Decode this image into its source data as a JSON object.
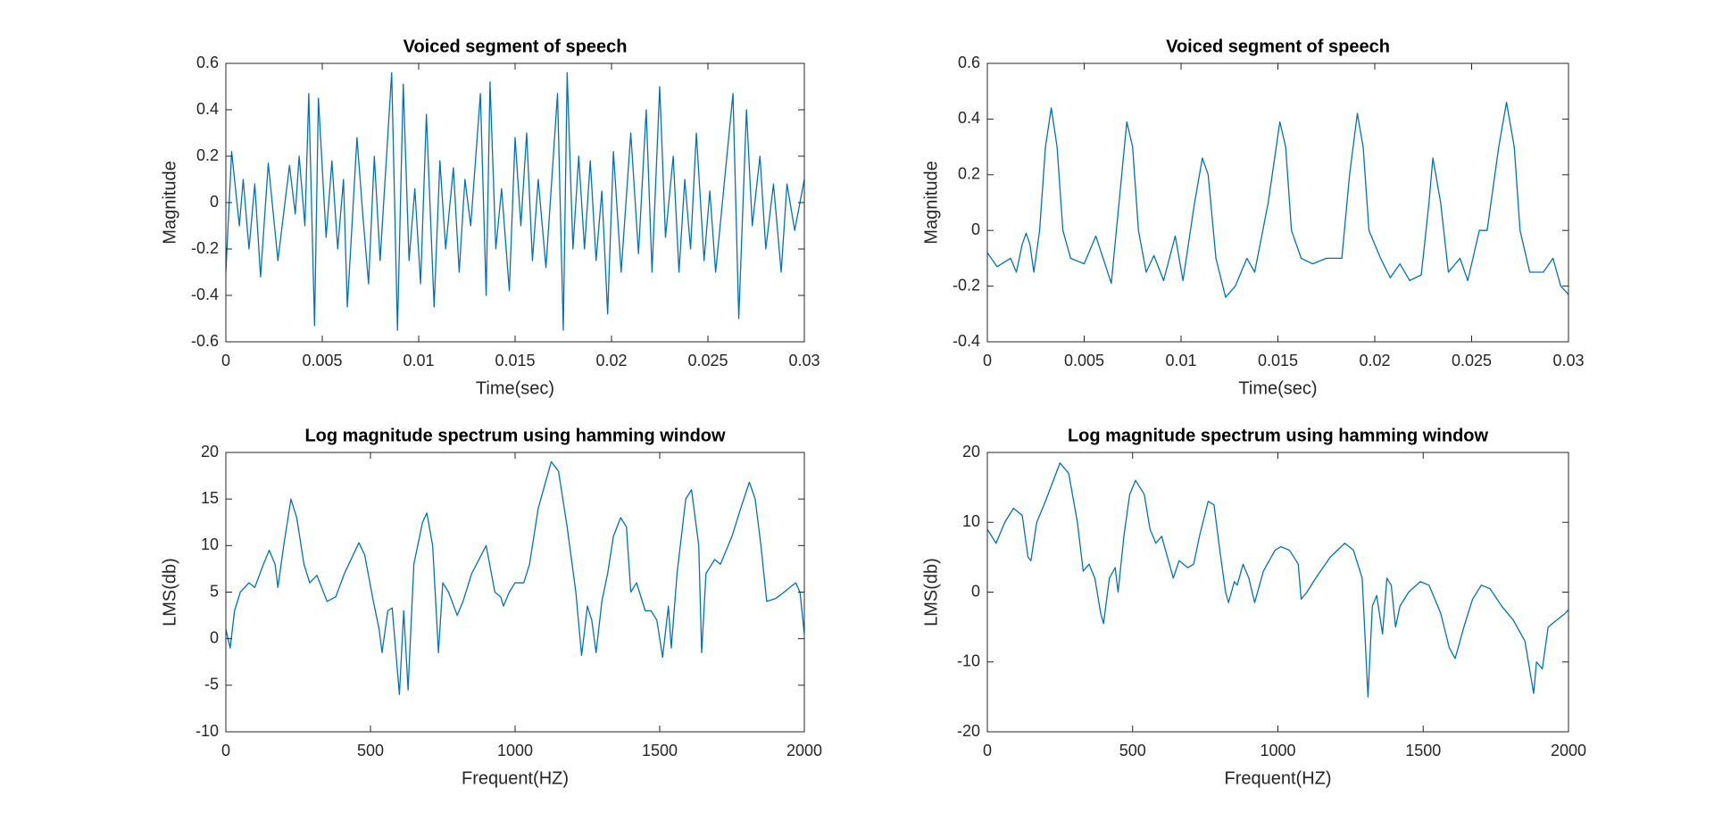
{
  "chart_data": [
    {
      "type": "line",
      "title": "Voiced segment of speech",
      "xlabel": "Time(sec)",
      "ylabel": "Magnitude",
      "color": "#0072bd",
      "x": [
        0,
        0.0003,
        0.0007,
        0.0009,
        0.0012,
        0.0015,
        0.0018,
        0.0022,
        0.0027,
        0.0033,
        0.0036,
        0.0038,
        0.0041,
        0.0043,
        0.0046,
        0.0048,
        0.0052,
        0.0055,
        0.0058,
        0.0061,
        0.0063,
        0.0068,
        0.0071,
        0.0074,
        0.0077,
        0.008,
        0.0086,
        0.0089,
        0.0092,
        0.0095,
        0.0098,
        0.0101,
        0.0104,
        0.0108,
        0.0111,
        0.0114,
        0.0118,
        0.0121,
        0.0124,
        0.0127,
        0.0132,
        0.0135,
        0.0137,
        0.014,
        0.0143,
        0.0147,
        0.015,
        0.0153,
        0.0156,
        0.0159,
        0.0162,
        0.0166,
        0.0172,
        0.0175,
        0.0177,
        0.018,
        0.0183,
        0.0186,
        0.0189,
        0.0192,
        0.0195,
        0.0198,
        0.0201,
        0.0205,
        0.021,
        0.0214,
        0.0218,
        0.0221,
        0.0225,
        0.0228,
        0.0232,
        0.0235,
        0.0238,
        0.0241,
        0.0244,
        0.0248,
        0.0251,
        0.0254,
        0.0263,
        0.0266,
        0.027,
        0.0273,
        0.0277,
        0.028,
        0.0284,
        0.0288,
        0.0291,
        0.0295,
        0.03
      ],
      "values": [
        -0.3,
        0.22,
        -0.1,
        0.1,
        -0.2,
        0.08,
        -0.32,
        0.17,
        -0.25,
        0.16,
        -0.05,
        0.2,
        -0.1,
        0.47,
        -0.53,
        0.45,
        -0.15,
        0.18,
        -0.2,
        0.1,
        -0.45,
        0.28,
        -0.05,
        -0.35,
        0.2,
        -0.25,
        0.56,
        -0.55,
        0.51,
        -0.25,
        0.06,
        -0.35,
        0.38,
        -0.45,
        0.18,
        -0.2,
        0.15,
        -0.3,
        0.1,
        -0.1,
        0.47,
        -0.4,
        0.52,
        -0.2,
        0.06,
        -0.38,
        0.28,
        -0.1,
        0.3,
        -0.25,
        0.1,
        -0.28,
        0.47,
        -0.55,
        0.56,
        -0.2,
        0.2,
        -0.2,
        0.18,
        -0.25,
        0.05,
        -0.48,
        0.22,
        -0.3,
        0.3,
        -0.22,
        0.4,
        -0.3,
        0.5,
        -0.15,
        0.2,
        -0.3,
        0.1,
        -0.2,
        0.3,
        -0.25,
        0.05,
        -0.3,
        0.47,
        -0.5,
        0.4,
        -0.1,
        0.2,
        -0.2,
        0.08,
        -0.3,
        0.08,
        -0.12,
        0.1
      ],
      "xlim": [
        0,
        0.03
      ],
      "xticks": [
        0,
        0.005,
        0.01,
        0.015,
        0.02,
        0.025,
        0.03
      ],
      "ylim": [
        -0.6,
        0.6
      ],
      "yticks": [
        -0.6,
        -0.4,
        -0.2,
        0,
        0.2,
        0.4,
        0.6
      ]
    },
    {
      "type": "line",
      "title": "Voiced segment of speech",
      "xlabel": "Time(sec)",
      "ylabel": "Magnitude",
      "color": "#0072bd",
      "x": [
        0,
        0.0005,
        0.0012,
        0.0015,
        0.0018,
        0.002,
        0.0022,
        0.0024,
        0.0027,
        0.003,
        0.0033,
        0.0036,
        0.0039,
        0.0043,
        0.005,
        0.0056,
        0.0064,
        0.0068,
        0.0072,
        0.0075,
        0.0078,
        0.0082,
        0.0086,
        0.0091,
        0.0097,
        0.0101,
        0.0107,
        0.0111,
        0.0114,
        0.0118,
        0.0123,
        0.0128,
        0.0134,
        0.0138,
        0.0145,
        0.0151,
        0.0154,
        0.0157,
        0.0162,
        0.0168,
        0.0175,
        0.0183,
        0.0187,
        0.0191,
        0.0194,
        0.0197,
        0.0203,
        0.0208,
        0.0213,
        0.0218,
        0.0224,
        0.0228,
        0.023,
        0.0234,
        0.0238,
        0.0244,
        0.0248,
        0.0254,
        0.0258,
        0.0264,
        0.0268,
        0.0272,
        0.0275,
        0.028,
        0.0287,
        0.0292,
        0.0296,
        0.03
      ],
      "values": [
        -0.08,
        -0.13,
        -0.1,
        -0.15,
        -0.05,
        -0.01,
        -0.05,
        -0.15,
        0,
        0.3,
        0.44,
        0.3,
        0,
        -0.1,
        -0.12,
        -0.02,
        -0.19,
        0.1,
        0.39,
        0.3,
        0,
        -0.15,
        -0.09,
        -0.18,
        -0.02,
        -0.18,
        0.1,
        0.26,
        0.2,
        -0.1,
        -0.24,
        -0.2,
        -0.1,
        -0.15,
        0.1,
        0.39,
        0.3,
        0,
        -0.1,
        -0.12,
        -0.1,
        -0.1,
        0.2,
        0.42,
        0.3,
        0,
        -0.1,
        -0.17,
        -0.12,
        -0.18,
        -0.16,
        0.1,
        0.26,
        0.1,
        -0.15,
        -0.1,
        -0.18,
        0,
        0,
        0.3,
        0.46,
        0.3,
        0,
        -0.15,
        -0.15,
        -0.1,
        -0.2,
        -0.23
      ],
      "xlim": [
        0,
        0.03
      ],
      "xticks": [
        0,
        0.005,
        0.01,
        0.015,
        0.02,
        0.025,
        0.03
      ],
      "ylim": [
        -0.4,
        0.6
      ],
      "yticks": [
        -0.4,
        -0.2,
        0,
        0.2,
        0.4,
        0.6
      ]
    },
    {
      "type": "line",
      "title": "Log magnitude spectrum using hamming window",
      "xlabel": "Frequent(HZ)",
      "ylabel": "LMS(db)",
      "color": "#0072bd",
      "x": [
        0,
        15,
        30,
        50,
        80,
        100,
        130,
        150,
        170,
        180,
        200,
        225,
        245,
        270,
        290,
        315,
        350,
        380,
        410,
        460,
        480,
        510,
        530,
        540,
        560,
        575,
        600,
        615,
        630,
        650,
        680,
        695,
        715,
        735,
        750,
        770,
        800,
        820,
        850,
        900,
        930,
        950,
        960,
        980,
        1000,
        1030,
        1050,
        1080,
        1125,
        1150,
        1180,
        1210,
        1230,
        1250,
        1265,
        1280,
        1300,
        1320,
        1340,
        1365,
        1385,
        1400,
        1420,
        1450,
        1470,
        1490,
        1510,
        1530,
        1540,
        1560,
        1590,
        1610,
        1635,
        1645,
        1660,
        1690,
        1710,
        1750,
        1780,
        1810,
        1830,
        1850,
        1870,
        1900,
        1930,
        1970,
        1985,
        2000
      ],
      "values": [
        1,
        -1,
        3,
        5,
        6,
        5.5,
        8,
        9.5,
        8,
        5.5,
        10,
        15,
        13,
        8,
        6,
        6.8,
        4,
        4.5,
        7,
        10.3,
        9,
        4,
        1,
        -1.5,
        3,
        3.3,
        -6,
        3,
        -5.5,
        8,
        12.5,
        13.5,
        10,
        -1.5,
        6,
        5,
        2.5,
        4,
        7,
        10,
        5,
        4.5,
        3.5,
        5,
        6,
        6,
        8,
        14,
        19,
        18,
        12,
        5,
        -1.8,
        3.5,
        2,
        -1.5,
        4,
        7,
        11,
        13,
        12,
        5,
        6,
        3,
        3,
        2,
        -2,
        3.5,
        -1,
        7,
        15,
        16,
        10,
        -1.5,
        7,
        8.5,
        8,
        11,
        14,
        16.8,
        15,
        10,
        4,
        4.3,
        5,
        6,
        5,
        0.5
      ],
      "xlim": [
        0,
        2000
      ],
      "xticks": [
        0,
        500,
        1000,
        1500,
        2000
      ],
      "ylim": [
        -10,
        20
      ],
      "yticks": [
        -10,
        -5,
        0,
        5,
        10,
        15,
        20
      ]
    },
    {
      "type": "line",
      "title": "Log magnitude spectrum using hamming window",
      "xlabel": "Frequent(HZ)",
      "ylabel": "LMS(db)",
      "color": "#0072bd",
      "x": [
        0,
        30,
        60,
        90,
        120,
        140,
        150,
        170,
        200,
        250,
        280,
        310,
        330,
        350,
        370,
        390,
        400,
        420,
        440,
        450,
        470,
        490,
        510,
        540,
        560,
        580,
        600,
        620,
        640,
        660,
        690,
        710,
        730,
        760,
        780,
        800,
        820,
        830,
        850,
        860,
        880,
        900,
        920,
        950,
        990,
        1010,
        1040,
        1070,
        1080,
        1100,
        1130,
        1180,
        1230,
        1260,
        1290,
        1310,
        1325,
        1340,
        1360,
        1375,
        1390,
        1405,
        1420,
        1450,
        1490,
        1520,
        1560,
        1590,
        1610,
        1640,
        1670,
        1700,
        1730,
        1770,
        1810,
        1850,
        1880,
        1890,
        1910,
        1930,
        1960,
        1990,
        2000
      ],
      "values": [
        9,
        7,
        10,
        12,
        11,
        5,
        4.5,
        10,
        13,
        18.5,
        17,
        10,
        3,
        4,
        2,
        -3,
        -4.5,
        2,
        3.5,
        0,
        8,
        14,
        16,
        14,
        9,
        7,
        8,
        5,
        2,
        4.5,
        3.5,
        4,
        8,
        13,
        12.5,
        6,
        0,
        -1.5,
        1.5,
        1,
        4,
        2,
        -1.5,
        3,
        6,
        6.5,
        6,
        4,
        -1,
        0,
        2,
        5,
        7,
        6,
        2,
        -15,
        -2,
        -0.5,
        -6,
        2,
        1,
        -5,
        -2,
        0,
        1.5,
        1,
        -3,
        -8,
        -9.5,
        -5,
        -1,
        1,
        0.5,
        -2,
        -4,
        -7,
        -14.5,
        -10,
        -11,
        -5,
        -4,
        -3,
        -2.5
      ],
      "xlim": [
        0,
        2000
      ],
      "xticks": [
        0,
        500,
        1000,
        1500,
        2000
      ],
      "ylim": [
        -20,
        20
      ],
      "yticks": [
        -20,
        -10,
        0,
        10,
        20
      ]
    }
  ]
}
